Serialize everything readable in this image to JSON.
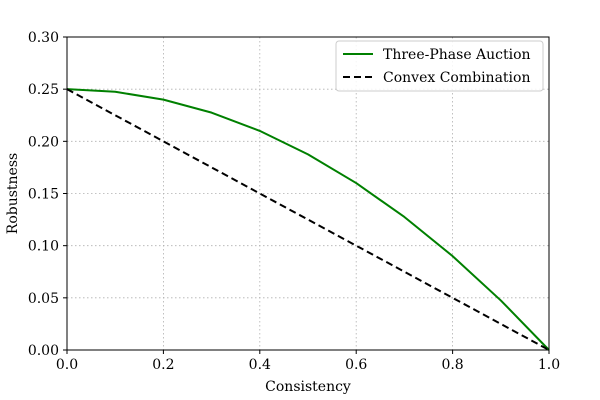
{
  "chart_data": {
    "type": "line",
    "title": "",
    "xlabel": "Consistency",
    "ylabel": "Robustness",
    "xlim": [
      0.0,
      1.0
    ],
    "ylim": [
      0.0,
      0.3
    ],
    "xticks": [
      "0.0",
      "0.2",
      "0.4",
      "0.6",
      "0.8",
      "1.0"
    ],
    "yticks": [
      "0.00",
      "0.05",
      "0.10",
      "0.15",
      "0.20",
      "0.25",
      "0.30"
    ],
    "grid": true,
    "legend_position": "top-right",
    "series": [
      {
        "name": "Three-Phase Auction",
        "color": "#008000",
        "style": "solid",
        "x": [
          0.0,
          0.1,
          0.2,
          0.3,
          0.4,
          0.5,
          0.6,
          0.7,
          0.8,
          0.9,
          1.0
        ],
        "y": [
          0.25,
          0.2475,
          0.24,
          0.2275,
          0.21,
          0.1875,
          0.16,
          0.1275,
          0.09,
          0.0475,
          0.0
        ]
      },
      {
        "name": "Convex Combination",
        "color": "#000000",
        "style": "dashed",
        "x": [
          0.0,
          1.0
        ],
        "y": [
          0.25,
          0.0
        ]
      }
    ]
  }
}
